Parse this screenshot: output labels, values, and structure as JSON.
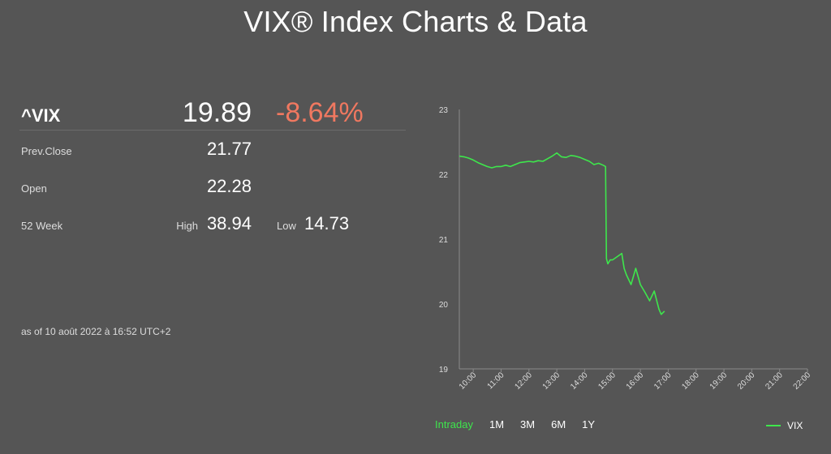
{
  "page": {
    "title": "VIX® Index Charts & Data"
  },
  "quote": {
    "symbol": "^VIX",
    "last": "19.89",
    "change_pct": "-8.64%",
    "prev_close_label": "Prev.Close",
    "prev_close": "21.77",
    "open_label": "Open",
    "open": "22.28",
    "week52_label": "52 Week",
    "high_label": "High",
    "high": "38.94",
    "low_label": "Low",
    "low": "14.73",
    "as_of": "as of 10 août 2022 à 16:52 UTC+2"
  },
  "colors": {
    "up_down_negative": "#f07860",
    "series": "#3ee64c",
    "background": "#555555"
  },
  "range_tabs": [
    "Intraday",
    "1M",
    "3M",
    "6M",
    "1Y"
  ],
  "active_tab": "Intraday",
  "chart_data": {
    "type": "line",
    "title": "",
    "xlabel": "",
    "ylabel": "",
    "ylim": [
      19,
      23
    ],
    "yticks": [
      "19",
      "20",
      "21",
      "22",
      "23"
    ],
    "xticks": [
      "10:00",
      "11:00",
      "12:00",
      "13:00",
      "14:00",
      "15:00",
      "16:00",
      "17:00",
      "18:00",
      "19:00",
      "20:00",
      "21:00",
      "22:00"
    ],
    "xlim": [
      "09:30",
      "22:00"
    ],
    "grid": false,
    "legend": "bottom-right",
    "series": [
      {
        "name": "VIX",
        "color": "#3ee64c",
        "points": [
          [
            "09:30",
            22.28
          ],
          [
            "09:40",
            22.27
          ],
          [
            "09:50",
            22.25
          ],
          [
            "10:00",
            22.22
          ],
          [
            "10:10",
            22.18
          ],
          [
            "10:20",
            22.15
          ],
          [
            "10:30",
            22.12
          ],
          [
            "10:40",
            22.1
          ],
          [
            "10:50",
            22.12
          ],
          [
            "11:00",
            22.12
          ],
          [
            "11:10",
            22.14
          ],
          [
            "11:20",
            22.12
          ],
          [
            "11:30",
            22.15
          ],
          [
            "11:40",
            22.18
          ],
          [
            "11:50",
            22.19
          ],
          [
            "12:00",
            22.2
          ],
          [
            "12:10",
            22.19
          ],
          [
            "12:20",
            22.21
          ],
          [
            "12:30",
            22.2
          ],
          [
            "12:40",
            22.24
          ],
          [
            "12:50",
            22.28
          ],
          [
            "13:00",
            22.33
          ],
          [
            "13:10",
            22.27
          ],
          [
            "13:20",
            22.26
          ],
          [
            "13:30",
            22.29
          ],
          [
            "13:40",
            22.28
          ],
          [
            "13:50",
            22.26
          ],
          [
            "14:00",
            22.23
          ],
          [
            "14:10",
            22.2
          ],
          [
            "14:20",
            22.15
          ],
          [
            "14:30",
            22.17
          ],
          [
            "14:40",
            22.14
          ],
          [
            "14:45",
            22.12
          ],
          [
            "14:47",
            20.7
          ],
          [
            "14:50",
            20.62
          ],
          [
            "14:55",
            20.68
          ],
          [
            "15:00",
            20.68
          ],
          [
            "15:10",
            20.73
          ],
          [
            "15:20",
            20.78
          ],
          [
            "15:25",
            20.55
          ],
          [
            "15:30",
            20.45
          ],
          [
            "15:40",
            20.3
          ],
          [
            "15:50",
            20.55
          ],
          [
            "16:00",
            20.3
          ],
          [
            "16:10",
            20.18
          ],
          [
            "16:20",
            20.05
          ],
          [
            "16:30",
            20.2
          ],
          [
            "16:40",
            19.92
          ],
          [
            "16:45",
            19.84
          ],
          [
            "16:52",
            19.89
          ]
        ]
      }
    ]
  }
}
